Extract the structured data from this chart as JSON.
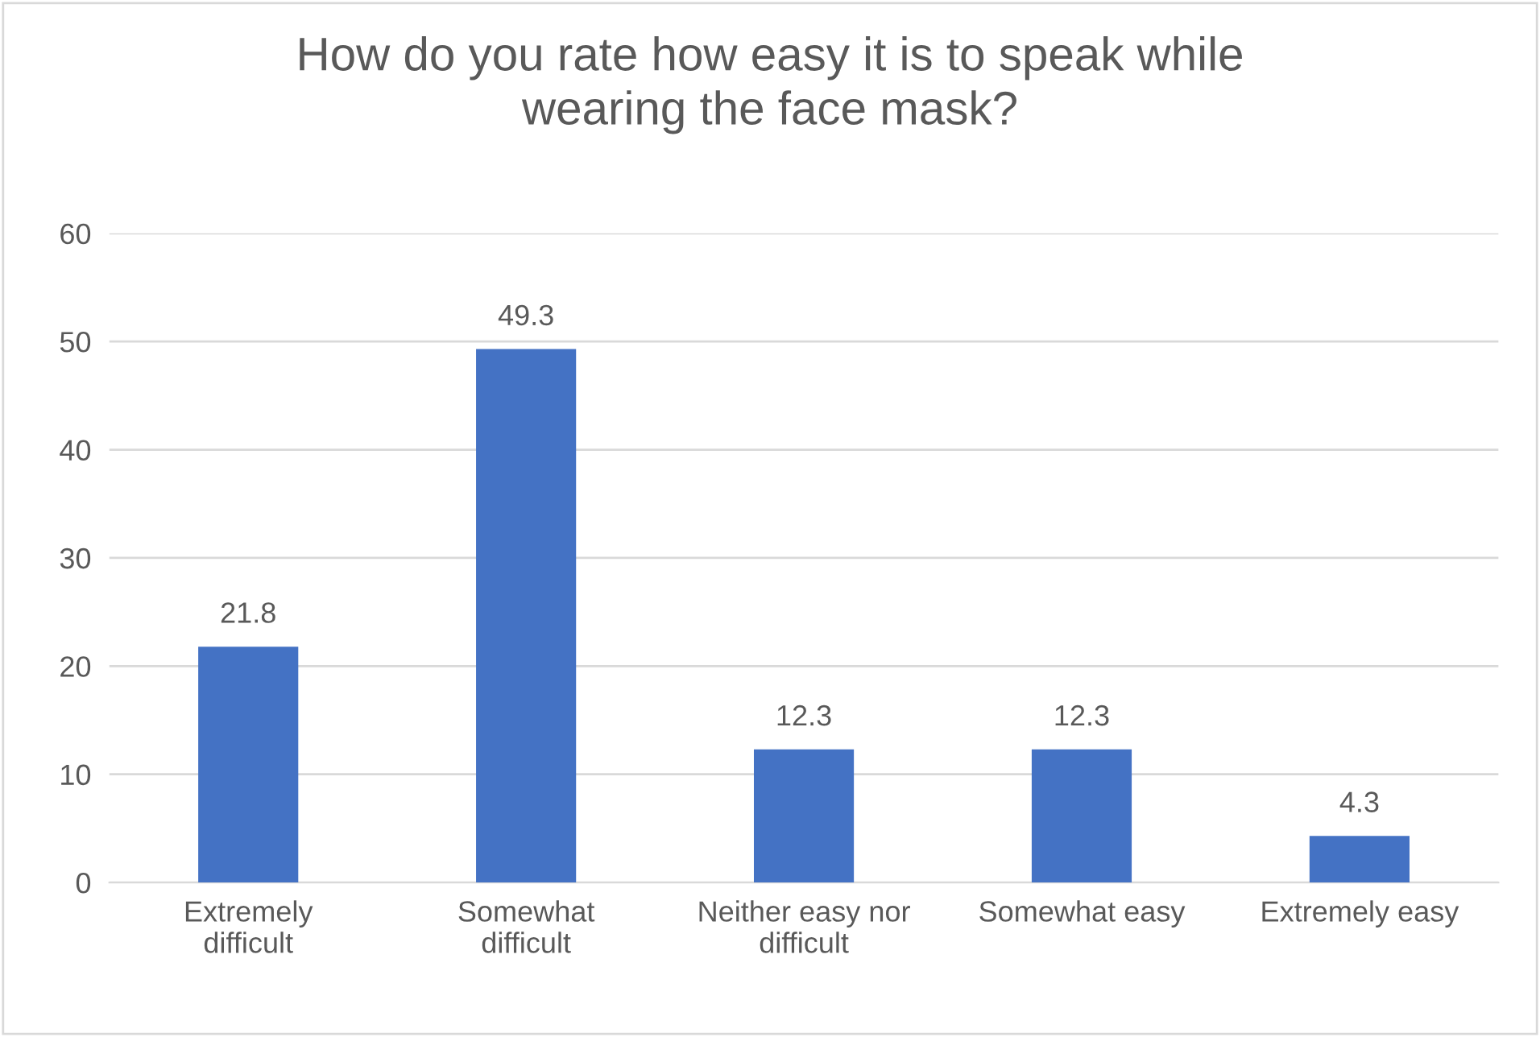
{
  "chart_data": {
    "type": "bar",
    "title": "How do you rate how easy it is to speak while\nwearing the face mask?",
    "categories": [
      "Extremely\ndifficult",
      "Somewhat\ndifficult",
      "Neither easy nor\ndifficult",
      "Somewhat easy",
      "Extremely easy"
    ],
    "values": [
      21.8,
      49.3,
      12.3,
      12.3,
      4.3
    ],
    "color": "#4472c4",
    "ylim": [
      0,
      60
    ],
    "yticks": [
      0,
      10,
      20,
      30,
      40,
      50,
      60
    ],
    "grid": "y",
    "data_labels": true,
    "legend": false
  }
}
